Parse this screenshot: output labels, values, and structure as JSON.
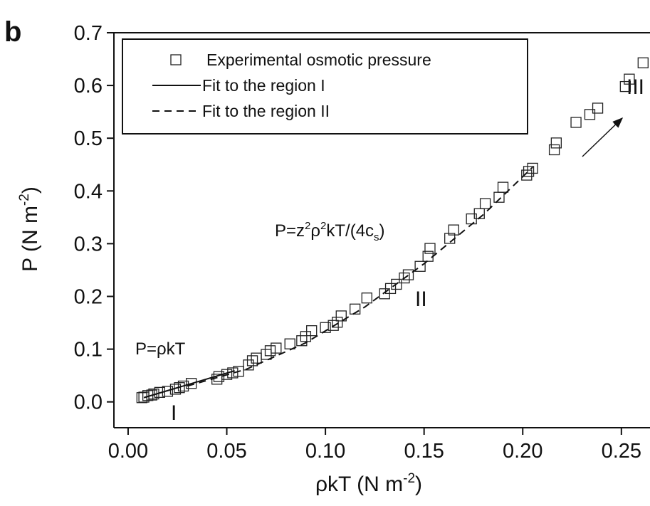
{
  "chart_data": {
    "type": "scatter",
    "panel_label": "b",
    "x_label": [
      "ρkT (N m",
      "-2",
      ")"
    ],
    "y_label": [
      "P (N m",
      "-2",
      ")"
    ],
    "xlim": [
      -0.0072,
      0.2645
    ],
    "ylim": [
      -0.049,
      0.7
    ],
    "xticks": [
      {
        "value": 0,
        "label": "0.00"
      },
      0.05,
      {
        "value": 0.1,
        "label": "0.10"
      },
      0.15,
      {
        "value": 0.2,
        "label": "0.20"
      },
      0.25
    ],
    "yticks": [
      {
        "value": 0,
        "label": "0.0"
      },
      0.1,
      0.2,
      0.3,
      0.4,
      0.5,
      0.6,
      0.7
    ],
    "annotations": {
      "region_I_formula": "P=ρkT",
      "region_II_formula": [
        "P=z",
        "2",
        "ρ",
        "2",
        "kT/(4c",
        "s",
        ")"
      ],
      "region_I": "I",
      "region_II": "II",
      "region_III": "III"
    },
    "series": [
      {
        "name": "Experimental osmotic pressure",
        "style": "markers",
        "color": "#222222",
        "x": [
          0.007,
          0.008,
          0.01,
          0.012,
          0.013,
          0.016,
          0.02,
          0.024,
          0.026,
          0.028,
          0.032,
          0.045,
          0.046,
          0.05,
          0.053,
          0.056,
          0.061,
          0.063,
          0.065,
          0.07,
          0.072,
          0.075,
          0.082,
          0.088,
          0.09,
          0.093,
          0.1,
          0.104,
          0.106,
          0.108,
          0.115,
          0.121,
          0.13,
          0.133,
          0.136,
          0.14,
          0.142,
          0.148,
          0.152,
          0.153,
          0.163,
          0.165,
          0.174,
          0.178,
          0.181,
          0.188,
          0.19,
          0.202,
          0.203,
          0.205,
          0.216,
          0.217,
          0.227,
          0.234,
          0.238,
          0.252,
          0.254,
          0.261
        ],
        "values": [
          0.008,
          0.009,
          0.012,
          0.013,
          0.015,
          0.018,
          0.02,
          0.024,
          0.027,
          0.03,
          0.035,
          0.043,
          0.048,
          0.052,
          0.055,
          0.058,
          0.07,
          0.078,
          0.083,
          0.09,
          0.097,
          0.102,
          0.11,
          0.116,
          0.124,
          0.135,
          0.141,
          0.145,
          0.151,
          0.163,
          0.176,
          0.197,
          0.205,
          0.215,
          0.223,
          0.235,
          0.241,
          0.257,
          0.276,
          0.291,
          0.31,
          0.326,
          0.347,
          0.357,
          0.376,
          0.388,
          0.407,
          0.43,
          0.437,
          0.443,
          0.478,
          0.491,
          0.53,
          0.545,
          0.557,
          0.598,
          0.612,
          0.643
        ]
      },
      {
        "name": "Fit to the region I",
        "style": "solid",
        "color": "#111111",
        "x": [
          0.008,
          0.054
        ],
        "values": [
          0.008,
          0.059
        ]
      },
      {
        "name": "Fit to the region II",
        "style": "dashed",
        "color": "#111111",
        "x": [
          0.03,
          0.06,
          0.09,
          0.12,
          0.15,
          0.18,
          0.205
        ],
        "values": [
          0.03,
          0.062,
          0.112,
          0.18,
          0.262,
          0.355,
          0.445
        ]
      }
    ]
  }
}
